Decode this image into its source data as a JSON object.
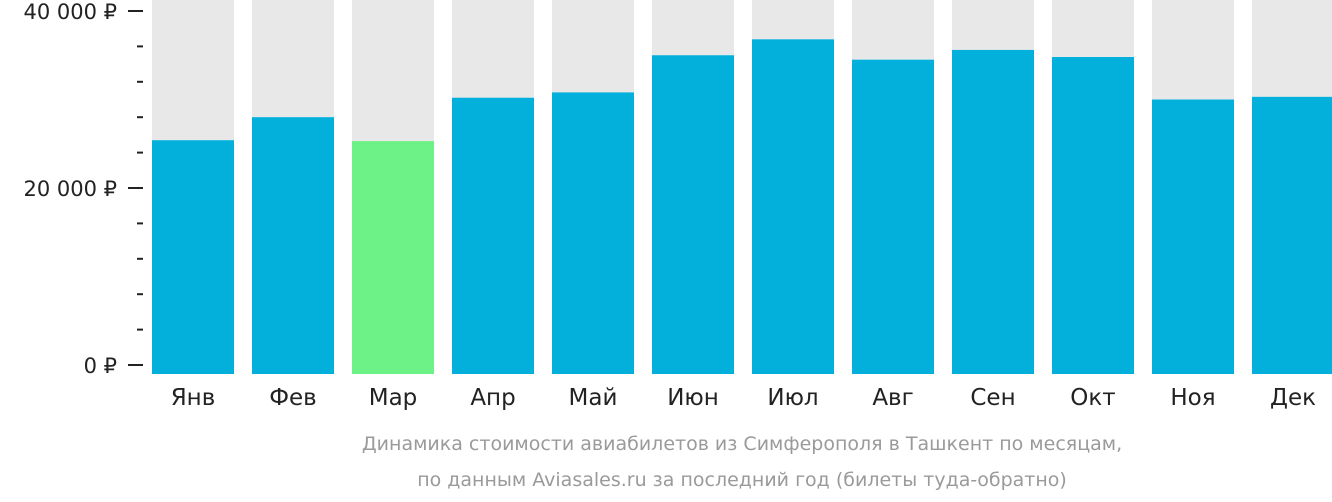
{
  "chart_data": {
    "type": "bar",
    "categories": [
      "Янв",
      "Фев",
      "Мар",
      "Апр",
      "Май",
      "Июн",
      "Июл",
      "Авг",
      "Сен",
      "Окт",
      "Ноя",
      "Дек"
    ],
    "values": [
      25400,
      28000,
      25300,
      30200,
      30800,
      35000,
      36800,
      34500,
      35600,
      34800,
      30000,
      30300
    ],
    "ylim": [
      0,
      42000
    ],
    "yticks": [
      {
        "value": 0,
        "label": "0 ₽"
      },
      {
        "value": 20000,
        "label": "20 000 ₽"
      },
      {
        "value": 40000,
        "label": "40 000 ₽"
      }
    ],
    "minor_tick_step": 4000,
    "highlight_index": 2,
    "colors": {
      "bar": "#03b0dc",
      "highlight": "#6cf286",
      "background_bar": "#e8e8e8",
      "axis": "#222222"
    },
    "caption": [
      "Динамика стоимости авиабилетов из Симферополя в Ташкент по месяцам,",
      "по данным Aviasales.ru за последний год (билеты туда-обратно)"
    ]
  }
}
